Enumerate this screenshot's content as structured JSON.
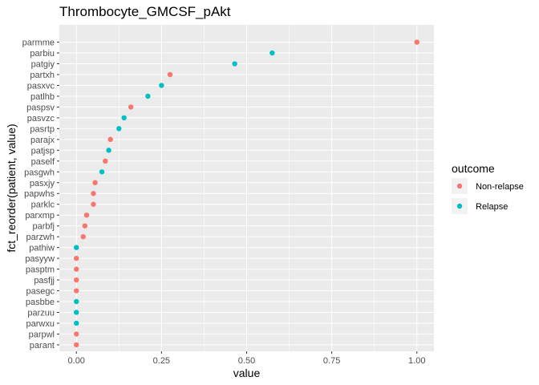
{
  "chart_data": {
    "type": "scatter",
    "title": "Thrombocyte_GMCSF_pAkt",
    "xlabel": "value",
    "ylabel": "fct_reorder(patient, value)",
    "xlim": [
      -0.05,
      1.05
    ],
    "x_ticks": [
      "0.00",
      "0.25",
      "0.50",
      "0.75",
      "1.00"
    ],
    "x_tick_values": [
      0,
      0.25,
      0.5,
      0.75,
      1.0
    ],
    "grid": true,
    "legend": {
      "title": "outcome",
      "position": "right",
      "entries": [
        {
          "label": "Non-relapse",
          "color": "#F8766D"
        },
        {
          "label": "Relapse",
          "color": "#00BFC4"
        }
      ]
    },
    "categories": [
      "parant",
      "parpwl",
      "parwxu",
      "parzuu",
      "pasbbe",
      "pasegc",
      "pasfjj",
      "pasptm",
      "pasyyw",
      "pathiw",
      "parzwh",
      "parbfj",
      "parxmp",
      "parklc",
      "papwhs",
      "pasxjy",
      "pasgwh",
      "paself",
      "patjsp",
      "parajx",
      "pasrtp",
      "pasvzc",
      "paspsv",
      "patlhb",
      "pasxvc",
      "partxh",
      "patgiy",
      "parbiu",
      "parmme"
    ],
    "points": [
      {
        "patient": "parant",
        "value": 0.0,
        "outcome": "Non-relapse"
      },
      {
        "patient": "parpwl",
        "value": 0.0,
        "outcome": "Non-relapse"
      },
      {
        "patient": "parwxu",
        "value": 0.0,
        "outcome": "Relapse"
      },
      {
        "patient": "parzuu",
        "value": 0.0,
        "outcome": "Relapse"
      },
      {
        "patient": "pasbbe",
        "value": 0.0,
        "outcome": "Relapse"
      },
      {
        "patient": "pasegc",
        "value": 0.0,
        "outcome": "Non-relapse"
      },
      {
        "patient": "pasfjj",
        "value": 0.0,
        "outcome": "Non-relapse"
      },
      {
        "patient": "pasptm",
        "value": 0.0,
        "outcome": "Non-relapse"
      },
      {
        "patient": "pasyyw",
        "value": 0.0,
        "outcome": "Non-relapse"
      },
      {
        "patient": "pathiw",
        "value": 0.0,
        "outcome": "Relapse"
      },
      {
        "patient": "parzwh",
        "value": 0.02,
        "outcome": "Non-relapse"
      },
      {
        "patient": "parbfj",
        "value": 0.025,
        "outcome": "Non-relapse"
      },
      {
        "patient": "parxmp",
        "value": 0.03,
        "outcome": "Non-relapse"
      },
      {
        "patient": "parklc",
        "value": 0.05,
        "outcome": "Non-relapse"
      },
      {
        "patient": "papwhs",
        "value": 0.05,
        "outcome": "Non-relapse"
      },
      {
        "patient": "pasxjy",
        "value": 0.055,
        "outcome": "Non-relapse"
      },
      {
        "patient": "pasgwh",
        "value": 0.075,
        "outcome": "Relapse"
      },
      {
        "patient": "paself",
        "value": 0.085,
        "outcome": "Non-relapse"
      },
      {
        "patient": "patjsp",
        "value": 0.095,
        "outcome": "Relapse"
      },
      {
        "patient": "parajx",
        "value": 0.1,
        "outcome": "Non-relapse"
      },
      {
        "patient": "pasrtp",
        "value": 0.125,
        "outcome": "Relapse"
      },
      {
        "patient": "pasvzc",
        "value": 0.14,
        "outcome": "Relapse"
      },
      {
        "patient": "paspsv",
        "value": 0.16,
        "outcome": "Non-relapse"
      },
      {
        "patient": "patlhb",
        "value": 0.21,
        "outcome": "Relapse"
      },
      {
        "patient": "pasxvc",
        "value": 0.25,
        "outcome": "Relapse"
      },
      {
        "patient": "partxh",
        "value": 0.275,
        "outcome": "Non-relapse"
      },
      {
        "patient": "patgiy",
        "value": 0.465,
        "outcome": "Relapse"
      },
      {
        "patient": "parbiu",
        "value": 0.575,
        "outcome": "Relapse"
      },
      {
        "patient": "parmme",
        "value": 1.0,
        "outcome": "Non-relapse"
      }
    ]
  }
}
